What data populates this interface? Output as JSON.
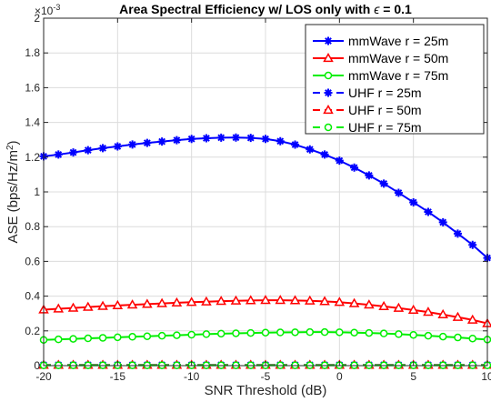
{
  "chart_data": {
    "type": "line",
    "title": "Area Spectral Efficiency w/ LOS only with",
    "title_symbol": "ϵ",
    "title_suffix": " = 0.1",
    "xlabel": "SNR Threshold (dB)",
    "ylabel": "ASE (bps/Hz/m",
    "ylabel_sup": "2",
    "ylabel_close": ")",
    "y_multiplier": "×10",
    "y_multiplier_exp": "-3",
    "xlim": [
      -20,
      10
    ],
    "ylim": [
      0,
      2
    ],
    "xticks": [
      -20,
      -15,
      -10,
      -5,
      0,
      5,
      10
    ],
    "yticks": [
      0,
      0.2,
      0.4,
      0.6,
      0.8,
      1,
      1.2,
      1.4,
      1.6,
      1.8,
      2
    ],
    "grid": true,
    "legend_position": "top-right",
    "x": [
      -20,
      -19,
      -18,
      -17,
      -16,
      -15,
      -14,
      -13,
      -12,
      -11,
      -10,
      -9,
      -8,
      -7,
      -6,
      -5,
      -4,
      -3,
      -2,
      -1,
      0,
      1,
      2,
      3,
      4,
      5,
      6,
      7,
      8,
      9,
      10
    ],
    "series": [
      {
        "name": "mmWave r = 25m",
        "color": "#0000ff",
        "marker": "asterisk",
        "dashed": false,
        "values": [
          1.205,
          1.215,
          1.227,
          1.24,
          1.252,
          1.262,
          1.273,
          1.282,
          1.29,
          1.298,
          1.305,
          1.309,
          1.312,
          1.313,
          1.311,
          1.305,
          1.292,
          1.272,
          1.245,
          1.215,
          1.18,
          1.14,
          1.095,
          1.048,
          0.995,
          0.94,
          0.885,
          0.825,
          0.76,
          0.695,
          0.62
        ]
      },
      {
        "name": "mmWave r = 50m",
        "color": "#ff0000",
        "marker": "triangle",
        "dashed": false,
        "values": [
          0.322,
          0.327,
          0.332,
          0.337,
          0.342,
          0.346,
          0.35,
          0.354,
          0.358,
          0.362,
          0.365,
          0.368,
          0.371,
          0.373,
          0.375,
          0.376,
          0.376,
          0.375,
          0.373,
          0.37,
          0.365,
          0.358,
          0.35,
          0.341,
          0.331,
          0.32,
          0.308,
          0.294,
          0.279,
          0.263,
          0.243
        ]
      },
      {
        "name": "mmWave r = 75m",
        "color": "#00ee00",
        "marker": "circle",
        "dashed": false,
        "values": [
          0.148,
          0.151,
          0.154,
          0.157,
          0.16,
          0.163,
          0.166,
          0.169,
          0.172,
          0.175,
          0.178,
          0.181,
          0.184,
          0.186,
          0.188,
          0.19,
          0.191,
          0.192,
          0.193,
          0.193,
          0.192,
          0.19,
          0.188,
          0.185,
          0.181,
          0.177,
          0.172,
          0.167,
          0.162,
          0.156,
          0.15
        ]
      },
      {
        "name": "UHF r = 25m",
        "color": "#0000ff",
        "marker": "asterisk",
        "dashed": true,
        "values": [
          0.004,
          0.004,
          0.004,
          0.004,
          0.004,
          0.004,
          0.004,
          0.004,
          0.004,
          0.004,
          0.004,
          0.004,
          0.004,
          0.004,
          0.004,
          0.004,
          0.004,
          0.004,
          0.004,
          0.004,
          0.004,
          0.004,
          0.004,
          0.004,
          0.004,
          0.004,
          0.004,
          0.004,
          0.004,
          0.004,
          0.004
        ]
      },
      {
        "name": "UHF r = 50m",
        "color": "#ff0000",
        "marker": "triangle",
        "dashed": true,
        "values": [
          0.003,
          0.003,
          0.003,
          0.003,
          0.003,
          0.003,
          0.003,
          0.003,
          0.003,
          0.003,
          0.003,
          0.003,
          0.003,
          0.003,
          0.003,
          0.003,
          0.003,
          0.003,
          0.003,
          0.003,
          0.003,
          0.003,
          0.003,
          0.003,
          0.003,
          0.003,
          0.003,
          0.003,
          0.003,
          0.003,
          0.003
        ]
      },
      {
        "name": "UHF r = 75m",
        "color": "#00ee00",
        "marker": "circle",
        "dashed": true,
        "values": [
          0.002,
          0.002,
          0.002,
          0.002,
          0.002,
          0.002,
          0.002,
          0.002,
          0.002,
          0.002,
          0.002,
          0.002,
          0.002,
          0.002,
          0.002,
          0.002,
          0.002,
          0.002,
          0.002,
          0.002,
          0.002,
          0.002,
          0.002,
          0.002,
          0.002,
          0.002,
          0.002,
          0.002,
          0.002,
          0.002,
          0.002
        ]
      }
    ]
  }
}
